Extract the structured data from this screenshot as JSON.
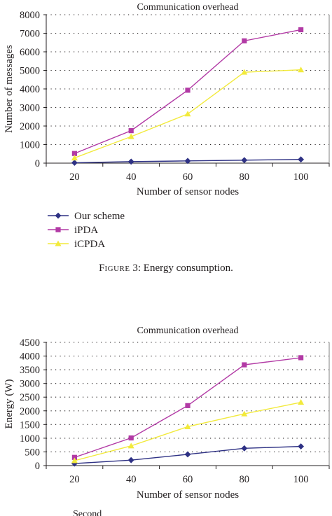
{
  "colors": {
    "our_scheme": "#2e3184",
    "ipda": "#b23aa5",
    "icpda": "#f2ea3c",
    "axis": "#231f20",
    "grid": "#231f20"
  },
  "figure_caption": {
    "label_first": "F",
    "label_rest": "IGURE",
    "label_num": " 3: ",
    "text": "Energy consumption."
  },
  "bottom_caption_fragment": "Second",
  "chart_data": [
    {
      "type": "line",
      "title": "Communication overhead",
      "xlabel": "Number of sensor nodes",
      "ylabel": "Number of messages",
      "categories": [
        "20",
        "40",
        "60",
        "80",
        "100"
      ],
      "x": [
        20,
        40,
        60,
        80,
        100
      ],
      "ylim": [
        0,
        8000
      ],
      "yticks": [
        "0",
        "1000",
        "2000",
        "3000",
        "4000",
        "5000",
        "6000",
        "7000",
        "8000"
      ],
      "grid": "horizontal dotted",
      "legend_position": "below-left",
      "series": [
        {
          "name": "Our scheme",
          "marker": "diamond",
          "values": [
            20,
            80,
            120,
            160,
            200
          ]
        },
        {
          "name": "iPDA",
          "marker": "square",
          "values": [
            520,
            1750,
            3930,
            6590,
            7190
          ]
        },
        {
          "name": "iCPDA",
          "marker": "triangle",
          "values": [
            280,
            1430,
            2650,
            4900,
            5030
          ]
        }
      ]
    },
    {
      "type": "line",
      "title": "Communication overhead",
      "xlabel": "Number of sensor nodes",
      "ylabel": "Energy (W)",
      "categories": [
        "20",
        "40",
        "60",
        "80",
        "100"
      ],
      "x": [
        20,
        40,
        60,
        80,
        100
      ],
      "ylim": [
        0,
        4500
      ],
      "yticks": [
        "0",
        "500",
        "1000",
        "1500",
        "2000",
        "2500",
        "3000",
        "3500",
        "4000",
        "4500"
      ],
      "grid": "horizontal dotted",
      "series": [
        {
          "name": "Our scheme",
          "marker": "diamond",
          "values": [
            75,
            200,
            410,
            630,
            700
          ]
        },
        {
          "name": "iPDA",
          "marker": "square",
          "values": [
            300,
            1010,
            2190,
            3680,
            3940
          ]
        },
        {
          "name": "iCPDA",
          "marker": "triangle",
          "values": [
            180,
            720,
            1420,
            1890,
            2310
          ]
        }
      ]
    }
  ]
}
